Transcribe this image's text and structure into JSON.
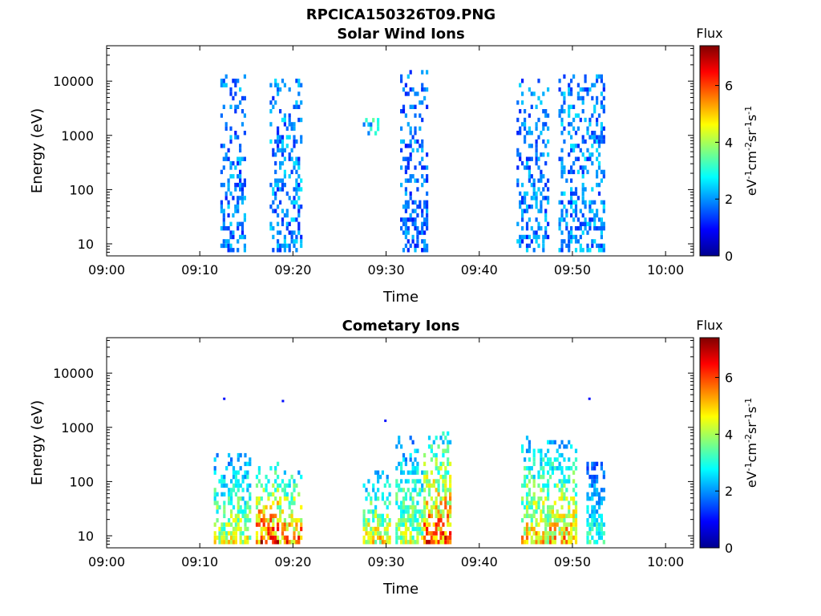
{
  "figure": {
    "title": "RPCICA150326T09.PNG",
    "background": "#ffffff",
    "colormap": "jet"
  },
  "chart_data": [
    {
      "type": "heatmap",
      "title": "Solar Wind Ions",
      "xlabel": "Time",
      "ylabel": "Energy (eV)",
      "x_ticks": [
        "09:00",
        "09:10",
        "09:20",
        "09:30",
        "09:40",
        "09:50",
        "10:00"
      ],
      "x_range_min": [
        0,
        63
      ],
      "y_scale": "log",
      "y_range_eV": [
        6,
        45000
      ],
      "y_ticks": [
        "10",
        "100",
        "1000",
        "10000"
      ],
      "colorbar": {
        "label": "Flux",
        "units": "eV-1cm-2sr-1s-1",
        "range": [
          0,
          7.4
        ],
        "ticks": [
          "0",
          "2",
          "4",
          "6"
        ]
      },
      "bursts": [
        {
          "t_start": 12.2,
          "t_end": 14.8,
          "e_low": 7,
          "e_high": 13000,
          "flux": 1.8
        },
        {
          "t_start": 17.5,
          "t_end": 21.0,
          "e_low": 7,
          "e_high": 10000,
          "flux": 1.9
        },
        {
          "t_start": 27.5,
          "t_end": 29.5,
          "e_low": 1000,
          "e_high": 2000,
          "flux": 2.5
        },
        {
          "t_start": 31.5,
          "t_end": 34.5,
          "e_low": 7,
          "e_high": 15000,
          "flux": 1.7
        },
        {
          "t_start": 44.0,
          "t_end": 47.5,
          "e_low": 7,
          "e_high": 10000,
          "flux": 1.8
        },
        {
          "t_start": 48.5,
          "t_end": 53.5,
          "e_low": 7,
          "e_high": 12000,
          "flux": 1.9
        }
      ]
    },
    {
      "type": "heatmap",
      "title": "Cometary Ions",
      "xlabel": "Time",
      "ylabel": "Energy (eV)",
      "x_ticks": [
        "09:00",
        "09:10",
        "09:20",
        "09:30",
        "09:40",
        "09:50",
        "10:00"
      ],
      "x_range_min": [
        0,
        63
      ],
      "y_scale": "log",
      "y_range_eV": [
        6,
        45000
      ],
      "y_ticks": [
        "10",
        "100",
        "1000",
        "10000"
      ],
      "colorbar": {
        "label": "Flux",
        "units": "eV-1cm-2sr-1s-1",
        "range": [
          0,
          7.4
        ],
        "ticks": [
          "0",
          "2",
          "4",
          "6"
        ]
      },
      "bursts": [
        {
          "t_start": 11.5,
          "t_end": 15.5,
          "e_low": 7,
          "e_high": 300,
          "flux": 4.5
        },
        {
          "t_start": 16.0,
          "t_end": 18.5,
          "e_low": 7,
          "e_high": 200,
          "flux": 6.2
        },
        {
          "t_start": 18.5,
          "t_end": 21.0,
          "e_low": 7,
          "e_high": 150,
          "flux": 5.8
        },
        {
          "t_start": 27.5,
          "t_end": 30.5,
          "e_low": 7,
          "e_high": 150,
          "flux": 4.8
        },
        {
          "t_start": 31.0,
          "t_end": 34.0,
          "e_low": 7,
          "e_high": 700,
          "flux": 4.2
        },
        {
          "t_start": 34.0,
          "t_end": 37.0,
          "e_low": 7,
          "e_high": 800,
          "flux": 6.0
        },
        {
          "t_start": 44.5,
          "t_end": 47.5,
          "e_low": 7,
          "e_high": 600,
          "flux": 5.0
        },
        {
          "t_start": 47.5,
          "t_end": 50.5,
          "e_low": 7,
          "e_high": 500,
          "flux": 5.3
        },
        {
          "t_start": 51.5,
          "t_end": 53.5,
          "e_low": 7,
          "e_high": 300,
          "flux": 3.2
        }
      ],
      "isolated_points": [
        {
          "t": 12.5,
          "e": 3300
        },
        {
          "t": 18.8,
          "e": 3000
        },
        {
          "t": 29.8,
          "e": 1300
        },
        {
          "t": 51.7,
          "e": 3300
        }
      ]
    }
  ]
}
